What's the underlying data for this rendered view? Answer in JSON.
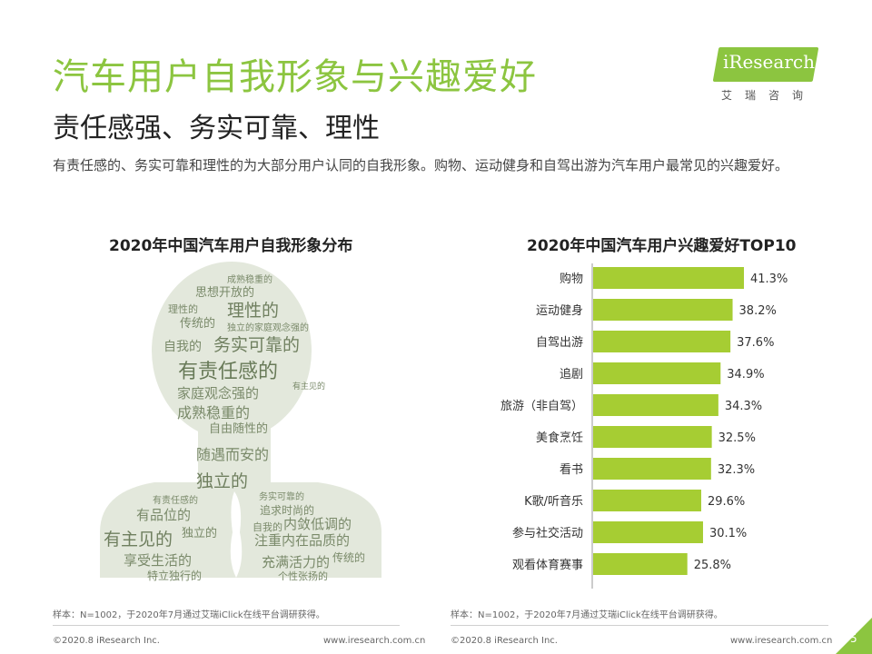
{
  "header": {
    "title": "汽车用户自我形象与兴趣爱好",
    "subtitle": "责任感强、务实可靠、理性",
    "description": "有责任感的、务实可靠和理性的为大部分用户认同的自我形象。购物、运动健身和自驾出游为汽车用户最常见的兴趣爱好。"
  },
  "logo": {
    "text": "iResearch",
    "sub": "艾瑞咨询"
  },
  "wordcloud": {
    "title": "2020年中国汽车用户自我形象分布",
    "words": [
      "成熟稳重的",
      "思想开放的",
      "理性的",
      "理性的",
      "传统的",
      "独立的",
      "家庭观念强的",
      "自我的",
      "务实可靠的",
      "有责任感的",
      "有主见的",
      "家庭观念强的",
      "成熟稳重的",
      "自由随性的",
      "随遇而安的",
      "独立的",
      "有责任感的",
      "务实可靠的",
      "有品位的",
      "独立的",
      "追求时尚的",
      "内敛低调的",
      "有主见的",
      "注重内在品质的",
      "享受生活的",
      "充满活力的",
      "传统的",
      "特立独行的",
      "个性张扬的",
      "自我的"
    ]
  },
  "chart_data": {
    "type": "bar",
    "orientation": "horizontal",
    "title": "2020年中国汽车用户兴趣爱好TOP10",
    "categories": [
      "购物",
      "运动健身",
      "自驾出游",
      "追剧",
      "旅游（非自驾）",
      "美食烹饪",
      "看书",
      "K歌/听音乐",
      "参与社交活动",
      "观看体育赛事"
    ],
    "values": [
      41.3,
      38.2,
      37.6,
      34.9,
      34.3,
      32.5,
      32.3,
      29.6,
      30.1,
      25.8
    ],
    "value_labels": [
      "41.3%",
      "38.2%",
      "37.6%",
      "34.9%",
      "34.3%",
      "32.5%",
      "32.3%",
      "29.6%",
      "30.1%",
      "25.8%"
    ],
    "xlim": [
      0,
      50
    ],
    "bar_color": "#a6cd33",
    "grid": false
  },
  "notes": {
    "left": "样本：N=1002，于2020年7月通过艾瑞iClick在线平台调研获得。",
    "right": "样本：N=1002，于2020年7月通过艾瑞iClick在线平台调研获得。"
  },
  "footer": {
    "copyright_left": "©2020.8 iResearch Inc.",
    "url_left": "www.iresearch.com.cn",
    "copyright_right": "©2020.8 iResearch Inc.",
    "url_right": "www.iresearch.com.cn",
    "page": "5"
  },
  "colors": {
    "accent": "#8cc540",
    "bar": "#a6cd33",
    "silhouette": "#e3e8dc"
  }
}
